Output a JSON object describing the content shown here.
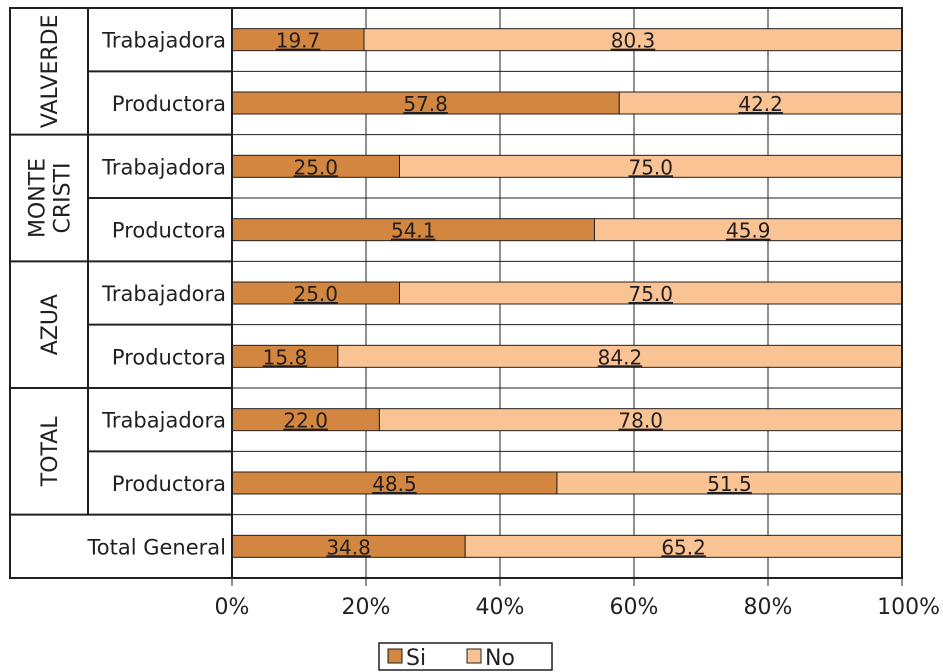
{
  "chart_data": {
    "type": "bar",
    "orientation": "horizontal",
    "stacked": true,
    "groups": [
      {
        "label": "VALVERDE",
        "label_lines": [
          "VALVERDE"
        ],
        "rows": [
          "Trabajadora",
          "Productora"
        ]
      },
      {
        "label": "MONTE CRISTI",
        "label_lines": [
          "MONTE",
          "CRISTI"
        ],
        "rows": [
          "Trabajadora",
          "Productora"
        ]
      },
      {
        "label": "AZUA",
        "label_lines": [
          "AZUA"
        ],
        "rows": [
          "Trabajadora",
          "Productora"
        ]
      },
      {
        "label": "TOTAL",
        "label_lines": [
          "TOTAL"
        ],
        "rows": [
          "Trabajadora",
          "Productora"
        ]
      },
      {
        "label": "",
        "label_lines": [],
        "rows": [
          "Total General"
        ]
      }
    ],
    "categories": [
      "Trabajadora",
      "Productora",
      "Trabajadora",
      "Productora",
      "Trabajadora",
      "Productora",
      "Trabajadora",
      "Productora",
      "Total General"
    ],
    "series": [
      {
        "name": "Si",
        "color": "#d2863f",
        "values": [
          19.7,
          57.8,
          25.0,
          54.1,
          25.0,
          15.8,
          22.0,
          48.5,
          34.8
        ]
      },
      {
        "name": "No",
        "color": "#f9c394",
        "values": [
          80.3,
          42.2,
          75.0,
          45.9,
          75.0,
          84.2,
          78.0,
          51.5,
          65.2
        ]
      }
    ],
    "value_labels": {
      "Si": [
        "19.7",
        "57.8",
        "25.0",
        "54.1",
        "25.0",
        "15.8",
        "22.0",
        "48.5",
        "34.8"
      ],
      "No": [
        "80.3",
        "42.2",
        "75.0",
        "45.9",
        "75.0",
        "84.2",
        "78.0",
        "51.5",
        "65.2"
      ]
    },
    "x_ticks": [
      "0%",
      "20%",
      "40%",
      "60%",
      "80%",
      "100%"
    ],
    "xlim": [
      0,
      100
    ],
    "grid": true,
    "legend_position": "bottom-center"
  }
}
